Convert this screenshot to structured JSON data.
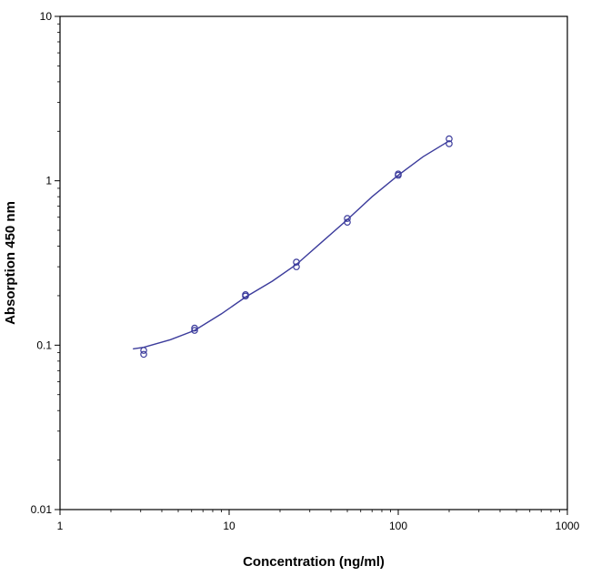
{
  "chart_data": {
    "type": "scatter",
    "title": "",
    "xlabel": "Concentration (ng/ml)",
    "ylabel": "Absorption 450 nm",
    "x_scale": "log",
    "y_scale": "log",
    "xlim": [
      1,
      1000
    ],
    "ylim": [
      0.01,
      10
    ],
    "x_ticks": [
      {
        "value": 1,
        "label": "1"
      },
      {
        "value": 10,
        "label": "10"
      },
      {
        "value": 100,
        "label": "100"
      },
      {
        "value": 1000,
        "label": "1000"
      }
    ],
    "y_ticks": [
      {
        "value": 0.01,
        "label": "0.01"
      },
      {
        "value": 0.1,
        "label": "0.1"
      },
      {
        "value": 1,
        "label": "1"
      },
      {
        "value": 10,
        "label": "10"
      }
    ],
    "grid": false,
    "legend": "none",
    "colors": {
      "series": "#3c3c9c",
      "axis": "#000000"
    },
    "series": [
      {
        "marker": "circle",
        "points": [
          {
            "x": 3.125,
            "y": 0.088
          },
          {
            "x": 3.125,
            "y": 0.093
          },
          {
            "x": 6.25,
            "y": 0.123
          },
          {
            "x": 6.25,
            "y": 0.127
          },
          {
            "x": 12.5,
            "y": 0.199
          },
          {
            "x": 12.5,
            "y": 0.203
          },
          {
            "x": 25,
            "y": 0.3
          },
          {
            "x": 25,
            "y": 0.32
          },
          {
            "x": 50,
            "y": 0.56
          },
          {
            "x": 50,
            "y": 0.59
          },
          {
            "x": 100,
            "y": 1.08
          },
          {
            "x": 100,
            "y": 1.1
          },
          {
            "x": 200,
            "y": 1.68
          },
          {
            "x": 200,
            "y": 1.8
          }
        ]
      }
    ],
    "fit_curve": [
      {
        "x": 2.7,
        "y": 0.095
      },
      {
        "x": 3.125,
        "y": 0.097
      },
      {
        "x": 4.5,
        "y": 0.108
      },
      {
        "x": 6.25,
        "y": 0.123
      },
      {
        "x": 9,
        "y": 0.155
      },
      {
        "x": 12.5,
        "y": 0.196
      },
      {
        "x": 18,
        "y": 0.245
      },
      {
        "x": 25,
        "y": 0.31
      },
      {
        "x": 35,
        "y": 0.42
      },
      {
        "x": 50,
        "y": 0.58
      },
      {
        "x": 70,
        "y": 0.8
      },
      {
        "x": 100,
        "y": 1.08
      },
      {
        "x": 140,
        "y": 1.4
      },
      {
        "x": 200,
        "y": 1.75
      }
    ]
  }
}
